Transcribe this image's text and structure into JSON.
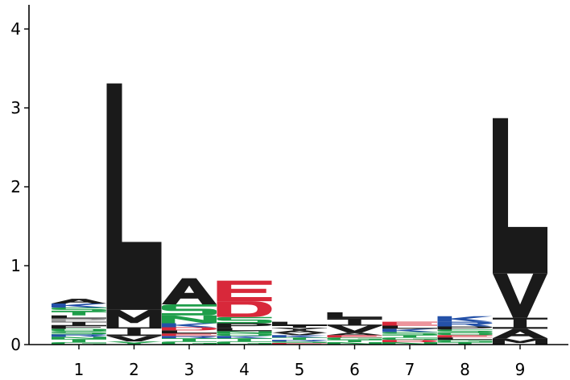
{
  "chart_data": {
    "type": "sequence-logo",
    "ylim": [
      0,
      4.3
    ],
    "y_ticks": [
      "0",
      "1",
      "2",
      "3",
      "4"
    ],
    "x_ticks": [
      "1",
      "2",
      "3",
      "4",
      "5",
      "6",
      "7",
      "8",
      "9"
    ],
    "colors": {
      "hydrophobic": "#1a1a1a",
      "polar": "#1e9e4a",
      "basic": "#2451a8",
      "acidic": "#d8283a",
      "neutral": "#9a9a9a"
    },
    "positions": [
      {
        "position": 1,
        "letters": [
          {
            "aa": "G",
            "height": 0.03,
            "class": "polar"
          },
          {
            "aa": "T",
            "height": 0.04,
            "class": "polar"
          },
          {
            "aa": "N",
            "height": 0.03,
            "class": "polar"
          },
          {
            "aa": "R",
            "height": 0.03,
            "class": "basic"
          },
          {
            "aa": "S",
            "height": 0.04,
            "class": "polar"
          },
          {
            "aa": "Q",
            "height": 0.03,
            "class": "polar"
          },
          {
            "aa": "F",
            "height": 0.04,
            "class": "hydrophobic"
          },
          {
            "aa": "I",
            "height": 0.05,
            "class": "hydrophobic"
          },
          {
            "aa": "P",
            "height": 0.04,
            "class": "neutral"
          },
          {
            "aa": "L",
            "height": 0.04,
            "class": "hydrophobic"
          },
          {
            "aa": "T",
            "height": 0.05,
            "class": "polar"
          },
          {
            "aa": "S",
            "height": 0.05,
            "class": "polar"
          },
          {
            "aa": "K",
            "height": 0.05,
            "class": "basic"
          },
          {
            "aa": "A",
            "height": 0.06,
            "class": "hydrophobic"
          }
        ]
      },
      {
        "position": 2,
        "letters": [
          {
            "aa": "Y",
            "height": 0.04,
            "class": "polar"
          },
          {
            "aa": "V",
            "height": 0.07,
            "class": "hydrophobic"
          },
          {
            "aa": "I",
            "height": 0.11,
            "class": "hydrophobic"
          },
          {
            "aa": "M",
            "height": 0.22,
            "class": "hydrophobic"
          },
          {
            "aa": "L",
            "height": 2.87,
            "class": "hydrophobic"
          }
        ]
      },
      {
        "position": 3,
        "letters": [
          {
            "aa": "G",
            "height": 0.04,
            "class": "polar"
          },
          {
            "aa": "T",
            "height": 0.04,
            "class": "polar"
          },
          {
            "aa": "R",
            "height": 0.03,
            "class": "basic"
          },
          {
            "aa": "E",
            "height": 0.03,
            "class": "acidic"
          },
          {
            "aa": "L",
            "height": 0.04,
            "class": "hydrophobic"
          },
          {
            "aa": "D",
            "height": 0.04,
            "class": "acidic"
          },
          {
            "aa": "K",
            "height": 0.05,
            "class": "basic"
          },
          {
            "aa": "N",
            "height": 0.1,
            "class": "polar"
          },
          {
            "aa": "S",
            "height": 0.14,
            "class": "polar"
          },
          {
            "aa": "A",
            "height": 0.33,
            "class": "hydrophobic"
          }
        ]
      },
      {
        "position": 4,
        "letters": [
          {
            "aa": "G",
            "height": 0.04,
            "class": "polar"
          },
          {
            "aa": "T",
            "height": 0.04,
            "class": "polar"
          },
          {
            "aa": "K",
            "height": 0.03,
            "class": "basic"
          },
          {
            "aa": "Q",
            "height": 0.03,
            "class": "polar"
          },
          {
            "aa": "N",
            "height": 0.03,
            "class": "polar"
          },
          {
            "aa": "L",
            "height": 0.04,
            "class": "hydrophobic"
          },
          {
            "aa": "P",
            "height": 0.06,
            "class": "hydrophobic"
          },
          {
            "aa": "S",
            "height": 0.08,
            "class": "polar"
          },
          {
            "aa": "D",
            "height": 0.2,
            "class": "acidic"
          },
          {
            "aa": "E",
            "height": 0.26,
            "class": "acidic"
          }
        ]
      },
      {
        "position": 5,
        "letters": [
          {
            "aa": "E",
            "height": 0.02,
            "class": "acidic"
          },
          {
            "aa": "S",
            "height": 0.02,
            "class": "polar"
          },
          {
            "aa": "R",
            "height": 0.02,
            "class": "basic"
          },
          {
            "aa": "T",
            "height": 0.03,
            "class": "polar"
          },
          {
            "aa": "K",
            "height": 0.03,
            "class": "basic"
          },
          {
            "aa": "V",
            "height": 0.03,
            "class": "hydrophobic"
          },
          {
            "aa": "A",
            "height": 0.03,
            "class": "hydrophobic"
          },
          {
            "aa": "Y",
            "height": 0.03,
            "class": "hydrophobic"
          },
          {
            "aa": "I",
            "height": 0.03,
            "class": "hydrophobic"
          },
          {
            "aa": "L",
            "height": 0.05,
            "class": "hydrophobic"
          }
        ]
      },
      {
        "position": 6,
        "letters": [
          {
            "aa": "N",
            "height": 0.03,
            "class": "polar"
          },
          {
            "aa": "T",
            "height": 0.03,
            "class": "polar"
          },
          {
            "aa": "G",
            "height": 0.03,
            "class": "polar"
          },
          {
            "aa": "E",
            "height": 0.03,
            "class": "acidic"
          },
          {
            "aa": "A",
            "height": 0.03,
            "class": "hydrophobic"
          },
          {
            "aa": "V",
            "height": 0.09,
            "class": "hydrophobic"
          },
          {
            "aa": "I",
            "height": 0.09,
            "class": "hydrophobic"
          },
          {
            "aa": "L",
            "height": 0.08,
            "class": "hydrophobic"
          }
        ]
      },
      {
        "position": 7,
        "letters": [
          {
            "aa": "N",
            "height": 0.03,
            "class": "polar"
          },
          {
            "aa": "D",
            "height": 0.03,
            "class": "acidic"
          },
          {
            "aa": "G",
            "height": 0.03,
            "class": "polar"
          },
          {
            "aa": "T",
            "height": 0.03,
            "class": "polar"
          },
          {
            "aa": "S",
            "height": 0.04,
            "class": "polar"
          },
          {
            "aa": "K",
            "height": 0.04,
            "class": "basic"
          },
          {
            "aa": "L",
            "height": 0.04,
            "class": "hydrophobic"
          },
          {
            "aa": "E",
            "height": 0.05,
            "class": "acidic"
          }
        ]
      },
      {
        "position": 8,
        "letters": [
          {
            "aa": "T",
            "height": 0.03,
            "class": "polar"
          },
          {
            "aa": "G",
            "height": 0.03,
            "class": "polar"
          },
          {
            "aa": "L",
            "height": 0.03,
            "class": "hydrophobic"
          },
          {
            "aa": "E",
            "height": 0.03,
            "class": "acidic"
          },
          {
            "aa": "Q",
            "height": 0.03,
            "class": "polar"
          },
          {
            "aa": "S",
            "height": 0.04,
            "class": "polar"
          },
          {
            "aa": "P",
            "height": 0.04,
            "class": "hydrophobic"
          },
          {
            "aa": "R",
            "height": 0.06,
            "class": "basic"
          },
          {
            "aa": "K",
            "height": 0.07,
            "class": "basic"
          }
        ]
      },
      {
        "position": 9,
        "letters": [
          {
            "aa": "M",
            "height": 0.08,
            "class": "hydrophobic"
          },
          {
            "aa": "A",
            "height": 0.12,
            "class": "hydrophobic"
          },
          {
            "aa": "I",
            "height": 0.14,
            "class": "hydrophobic"
          },
          {
            "aa": "V",
            "height": 0.56,
            "class": "hydrophobic"
          },
          {
            "aa": "L",
            "height": 1.97,
            "class": "hydrophobic"
          }
        ]
      }
    ]
  }
}
